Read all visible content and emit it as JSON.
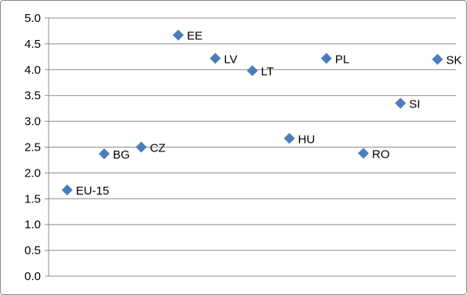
{
  "chart_data": {
    "type": "scatter",
    "title": "",
    "xlabel": "",
    "ylabel": "",
    "ylim": [
      0,
      5
    ],
    "ytick_step": 0.5,
    "ytick_labels": [
      "0.0",
      "0.5",
      "1.0",
      "1.5",
      "2.0",
      "2.5",
      "3.0",
      "3.5",
      "4.0",
      "4.5",
      "5.0"
    ],
    "grid": "horizontal",
    "legend": "none",
    "marker": "diamond",
    "marker_color": "#4a7ebb",
    "gridline_color": "#8c8c8c",
    "points": [
      {
        "label": "EU-15",
        "x": 1,
        "y": 1.67
      },
      {
        "label": "BG",
        "x": 2,
        "y": 2.37
      },
      {
        "label": "CZ",
        "x": 3,
        "y": 2.5
      },
      {
        "label": "EE",
        "x": 4,
        "y": 4.67
      },
      {
        "label": "LV",
        "x": 5,
        "y": 4.22
      },
      {
        "label": "LT",
        "x": 6,
        "y": 3.98
      },
      {
        "label": "HU",
        "x": 7,
        "y": 2.67
      },
      {
        "label": "PL",
        "x": 8,
        "y": 4.22
      },
      {
        "label": "RO",
        "x": 9,
        "y": 2.38
      },
      {
        "label": "SI",
        "x": 10,
        "y": 3.35
      },
      {
        "label": "SK",
        "x": 11,
        "y": 4.2
      }
    ]
  }
}
